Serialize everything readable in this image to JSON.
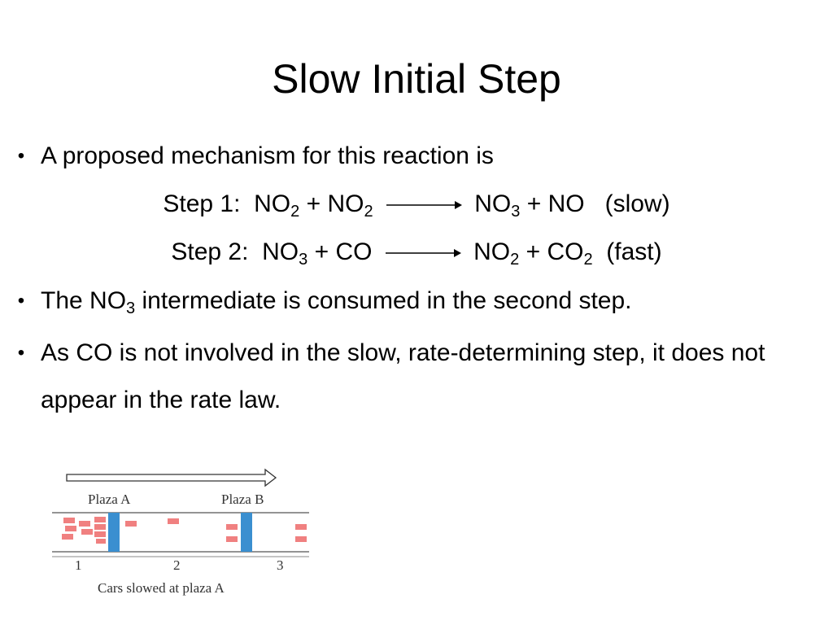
{
  "slide": {
    "title": "Slow Initial Step",
    "bullet1": "A proposed mechanism for this reaction is",
    "step1": {
      "label": "Step 1:",
      "r1": "NO",
      "r1_sub": "2",
      "plus1": "+",
      "r2": "NO",
      "r2_sub": "2",
      "p1": "NO",
      "p1_sub": "3",
      "plus2": "+",
      "p2": "NO",
      "rate": "(slow)"
    },
    "step2": {
      "label": "Step 2:",
      "r1": "NO",
      "r1_sub": "3",
      "plus1": "+",
      "r2": "CO",
      "p1": "NO",
      "p1_sub": "2",
      "plus2": "+",
      "p2": "CO",
      "p2_sub": "2",
      "rate": "(fast)"
    },
    "bullet2": {
      "pre": "The NO",
      "sub": "3",
      "post": " intermediate is consumed in the second step."
    },
    "bullet3": "As CO is not involved in the slow, rate-determining step, it does not appear in the rate law.",
    "bullet_glyph": "•"
  },
  "figure": {
    "plaza_a": "Plaza A",
    "plaza_b": "Plaza B",
    "section_1": "1",
    "section_2": "2",
    "section_3": "3",
    "caption": "Cars slowed at plaza A",
    "colors": {
      "car": "#f08080",
      "plaza": "#3a8fd0",
      "line": "#555555"
    }
  }
}
